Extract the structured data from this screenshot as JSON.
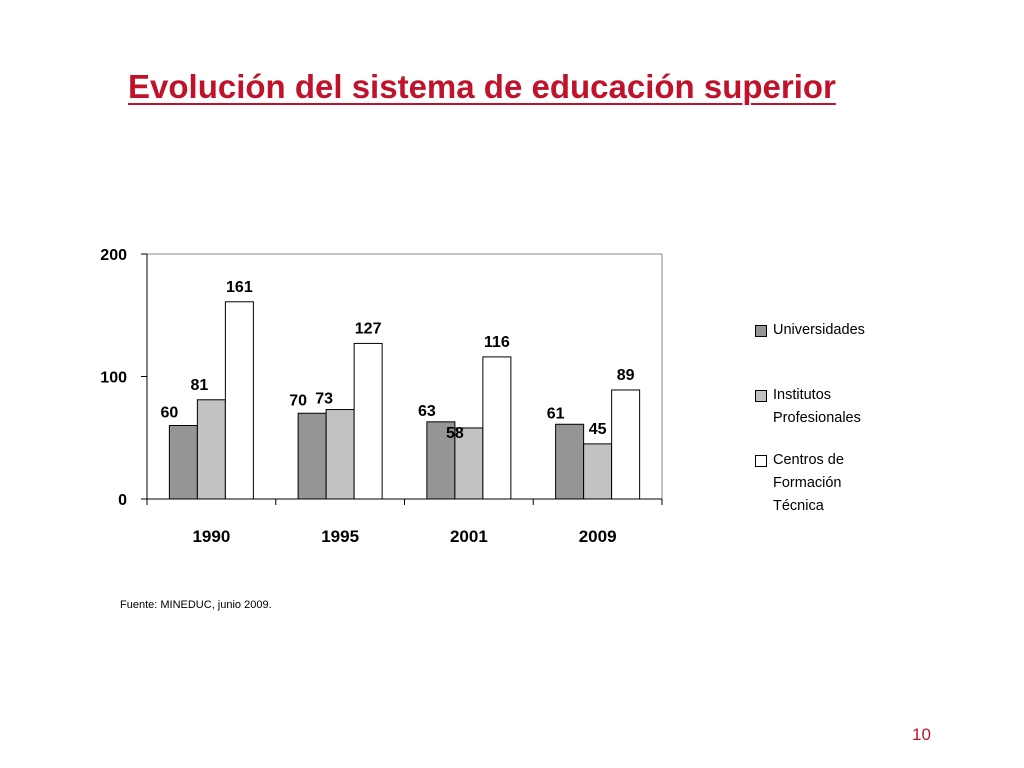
{
  "slide": {
    "title": "Evolución del sistema de educación superior",
    "source": "Fuente: MINEDUC, junio 2009.",
    "page_number": "10",
    "title_color": "#c0122b"
  },
  "chart_data": {
    "type": "bar",
    "categories": [
      "1990",
      "1995",
      "2001",
      "2009"
    ],
    "series": [
      {
        "name": "Universidades",
        "values": [
          60,
          70,
          63,
          61
        ],
        "color": "#959595"
      },
      {
        "name": "Institutos\nProfesionales",
        "values": [
          81,
          73,
          58,
          45
        ],
        "color": "#c2c2c2"
      },
      {
        "name": "Centros de\nFormación\nTécnica",
        "values": [
          161,
          127,
          116,
          89
        ],
        "color": "#ffffff"
      }
    ],
    "title": "",
    "xlabel": "",
    "ylabel": "",
    "ylim": [
      0,
      200
    ],
    "yticks": [
      "0",
      "100",
      "200"
    ],
    "grid": false,
    "legend_position": "right"
  }
}
